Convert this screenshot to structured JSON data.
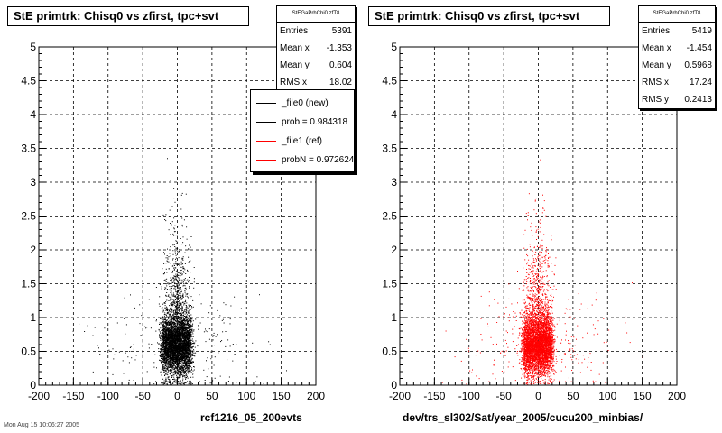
{
  "chart_data": [
    {
      "type": "scatter",
      "title": "StE primtrk: Chisq0 vs zfirst, tpc+svt",
      "xlabel": "rcf1216_05_200evts",
      "ylabel": "",
      "xlim": [
        -200,
        200
      ],
      "ylim": [
        0,
        5
      ],
      "xticks": [
        "-200",
        "-150",
        "-100",
        "-50",
        "0",
        "50",
        "100",
        "150",
        "200"
      ],
      "yticks": [
        "0",
        "0.5",
        "1",
        "1.5",
        "2",
        "2.5",
        "3",
        "3.5",
        "4",
        "4.5",
        "5"
      ],
      "grid": true,
      "marker_color": "#000000",
      "stats": {
        "name": "StEGaPrhChi0 zfT8",
        "rows": [
          {
            "label": "Entries",
            "value": "5391"
          },
          {
            "label": "Mean x",
            "value": "-1.353"
          },
          {
            "label": "Mean y",
            "value": "0.604"
          },
          {
            "label": "RMS x",
            "value": "18.02"
          }
        ]
      },
      "legend": {
        "placement": "top-right",
        "entries": [
          {
            "label": "_file0 (new)",
            "color": "#000000"
          },
          {
            "label": "prob = 0.984318",
            "color": "#000000"
          },
          {
            "label": "_file1 (ref)",
            "color": "#ff0000"
          },
          {
            "label": "probN = 0.972624",
            "color": "#ff0000"
          }
        ]
      },
      "distribution": {
        "x_mean": -1.353,
        "y_mean": 0.604,
        "x_rms": 18.02,
        "entries": 5391
      }
    },
    {
      "type": "scatter",
      "title": "StE primtrk: Chisq0 vs zfirst, tpc+svt",
      "xlabel": "dev/trs_sl302/Sat/year_2005/cucu200_minbias/",
      "ylabel": "",
      "xlim": [
        -200,
        200
      ],
      "ylim": [
        0,
        5
      ],
      "xticks": [
        "-200",
        "-150",
        "-100",
        "-50",
        "0",
        "50",
        "100",
        "150",
        "200"
      ],
      "yticks": [
        "0",
        "0.5",
        "1",
        "1.5",
        "2",
        "2.5",
        "3",
        "3.5",
        "4",
        "4.5",
        "5"
      ],
      "grid": true,
      "marker_color": "#ff0000",
      "stats": {
        "name": "StEGaPrhChi0 zfT8",
        "rows": [
          {
            "label": "Entries",
            "value": "5419"
          },
          {
            "label": "Mean x",
            "value": "-1.454"
          },
          {
            "label": "Mean y",
            "value": "0.5968"
          },
          {
            "label": "RMS x",
            "value": "17.24"
          },
          {
            "label": "RMS y",
            "value": "0.2413"
          }
        ]
      },
      "distribution": {
        "x_mean": -1.454,
        "y_mean": 0.5968,
        "x_rms": 17.24,
        "y_rms": 0.2413,
        "entries": 5419
      }
    }
  ],
  "footer": "Mon Aug 15 10:06:27 2005"
}
